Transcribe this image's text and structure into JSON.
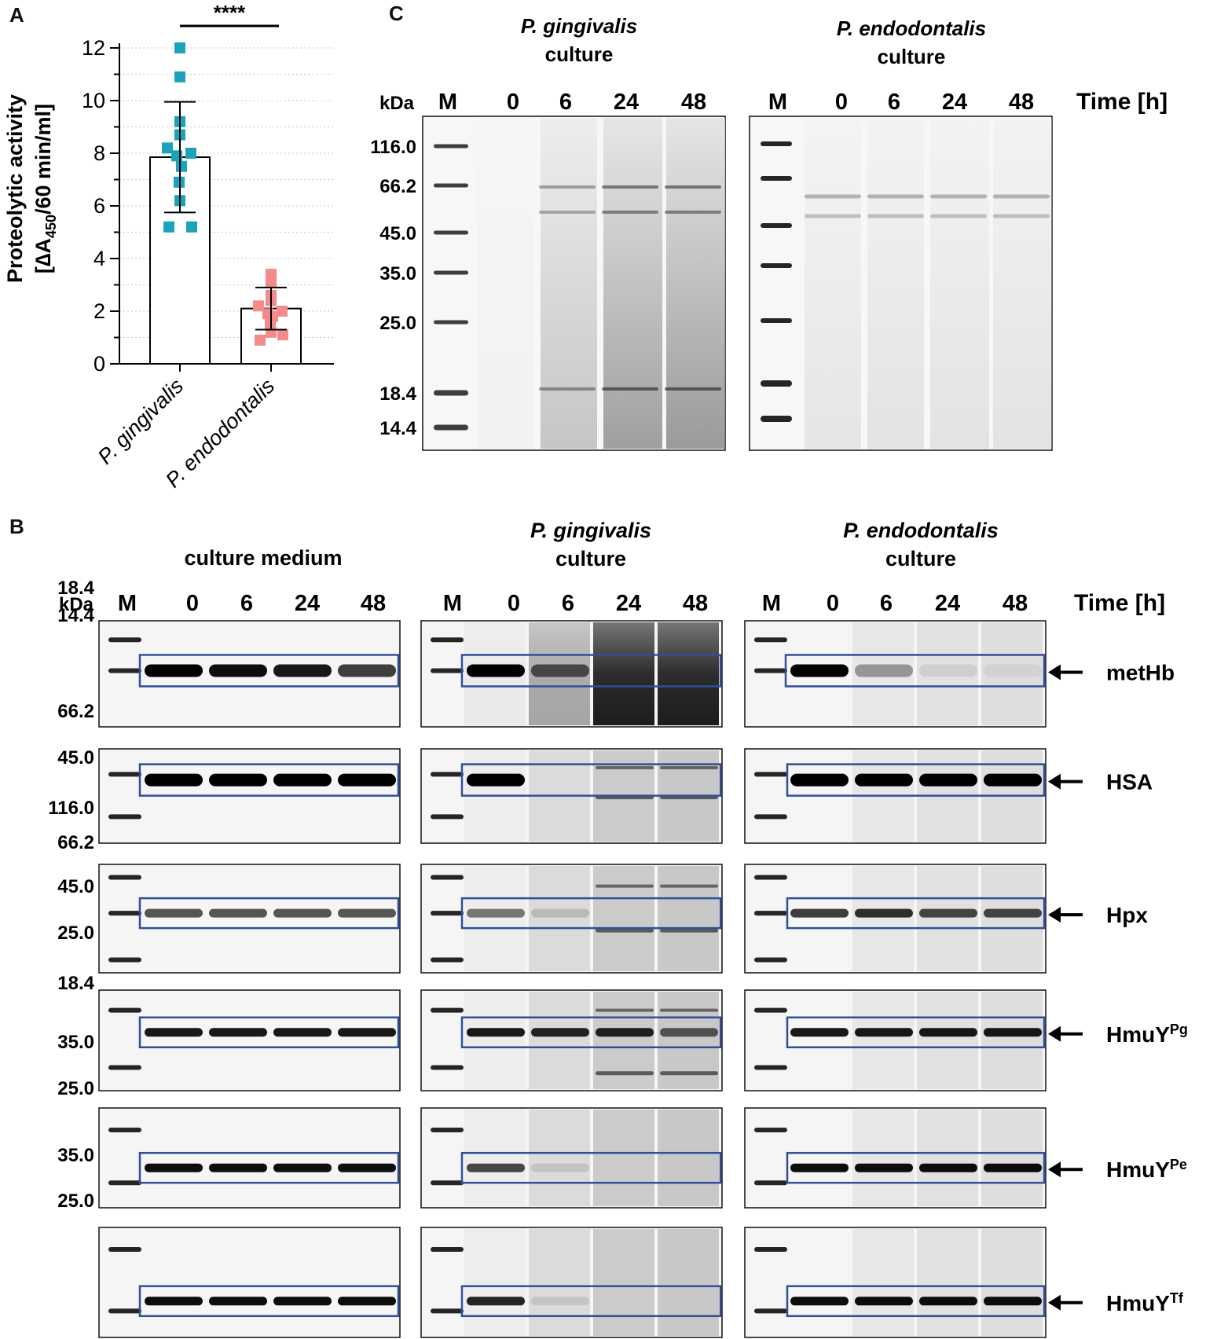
{
  "panel_a": {
    "letter": "A",
    "significance": "****",
    "ylabel_line1": "Proteolytic activity",
    "ylabel_line2_pre": "[",
    "ylabel_delta": "∆A",
    "ylabel_sub": "450",
    "ylabel_line2_post": "/60 min/ml]",
    "color_pg": "#1ba3bb",
    "color_pe": "#f48a8a"
  },
  "chart_data": {
    "type": "bar",
    "categories": [
      "P. gingivalis",
      "P. endodontalis"
    ],
    "ylim": [
      0,
      12
    ],
    "yticks": [
      0,
      2,
      4,
      6,
      8,
      10,
      12
    ],
    "series": [
      {
        "values": [
          7.85,
          2.1
        ],
        "error": [
          2.1,
          0.8
        ]
      }
    ],
    "points": {
      "P. gingivalis": [
        12.0,
        10.9,
        9.2,
        8.7,
        8.2,
        8.0,
        7.9,
        7.5,
        6.9,
        6.2,
        5.2,
        5.2
      ],
      "P. endodontalis": [
        3.4,
        3.1,
        2.6,
        2.4,
        2.2,
        2.0,
        1.9,
        1.8,
        1.5,
        1.2,
        1.1,
        0.9
      ]
    },
    "grid": true
  },
  "panel_c": {
    "letter": "C",
    "kda_label": "kDa",
    "time_label": "Time [h]",
    "lane_labels": [
      "M",
      "0",
      "6",
      "24",
      "48"
    ],
    "gel1_title_line1": "P. gingivalis",
    "gel1_title_line2": "culture",
    "gel2_title_line1": "P. endodontalis",
    "gel2_title_line2": "culture",
    "markers": [
      "116.0",
      "66.2",
      "45.0",
      "35.0",
      "25.0",
      "18.4",
      "14.4"
    ]
  },
  "panel_b": {
    "letter": "B",
    "kda_label": "kDa",
    "time_label": "Time [h]",
    "lane_labels": [
      "M",
      "0",
      "6",
      "24",
      "48"
    ],
    "col1_title": "culture medium",
    "col2_title_line1": "P. gingivalis",
    "col2_title_line2": "culture",
    "col3_title_line1": "P. endodontalis",
    "col3_title_line2": "culture",
    "rows": [
      {
        "protein": "metHb",
        "sup": "",
        "markers": [
          "18.4",
          "14.4"
        ]
      },
      {
        "protein": "HSA",
        "sup": "",
        "markers": [
          "66.2",
          "45.0"
        ]
      },
      {
        "protein": "Hpx",
        "sup": "",
        "markers": [
          "116.0",
          "66.2",
          "45.0"
        ]
      },
      {
        "protein": "HmuY",
        "sup": "Pg",
        "markers": [
          "25.0",
          "18.4"
        ]
      },
      {
        "protein": "HmuY",
        "sup": "Pe",
        "markers": [
          "35.0",
          "25.0"
        ]
      },
      {
        "protein": "HmuY",
        "sup": "Tf",
        "markers": [
          "35.0",
          "25.0"
        ]
      }
    ]
  }
}
